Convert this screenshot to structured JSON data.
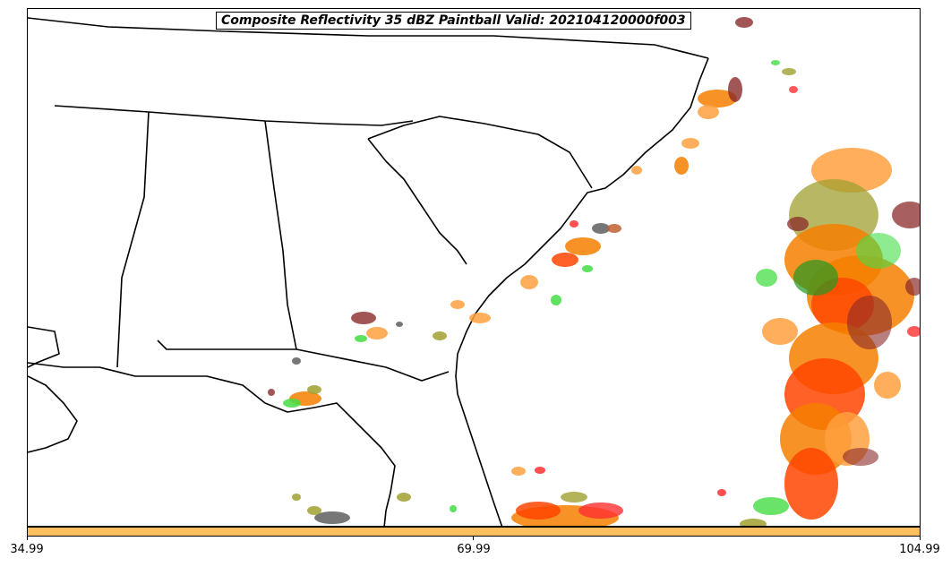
{
  "title": "Composite Reflectivity 35 dBZ Paintball Valid: 202104120000f003",
  "colorbar": {
    "color": "#ffbf60",
    "ticks": [
      "34.99",
      "69.99",
      "104.99"
    ]
  },
  "member_colors": [
    "#f57f00",
    "#ff4500",
    "#e03020",
    "#ff3030",
    "#ffa040",
    "#44dd44",
    "#229922",
    "#8b2a2a",
    "#a0a030",
    "#555555",
    "#c06030"
  ],
  "map_region": "Southeastern United States"
}
